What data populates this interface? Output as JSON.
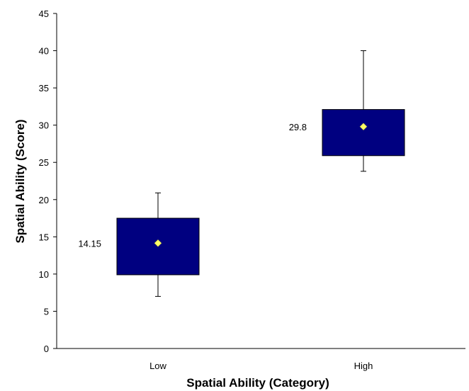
{
  "chart_data": {
    "type": "box",
    "title": "",
    "xlabel": "Spatial Ability (Category)",
    "ylabel": "Spatial Ability (Score)",
    "ylim": [
      0,
      45
    ],
    "y_ticks": [
      0,
      5,
      10,
      15,
      20,
      25,
      30,
      35,
      40,
      45
    ],
    "categories": [
      "Low",
      "High"
    ],
    "boxes": [
      {
        "category": "Low",
        "min": 7,
        "q1": 9.9,
        "q3": 17.5,
        "max": 20.9,
        "mean": 14.15,
        "mean_label": "14.15"
      },
      {
        "category": "High",
        "min": 23.8,
        "q1": 25.9,
        "q3": 32.1,
        "max": 40,
        "mean": 29.8,
        "mean_label": "29.8"
      }
    ],
    "grid": false,
    "legend": "none",
    "colors": {
      "box_fill": "#000080",
      "mean_marker": "#ffff66",
      "whisker": "#000000"
    }
  }
}
